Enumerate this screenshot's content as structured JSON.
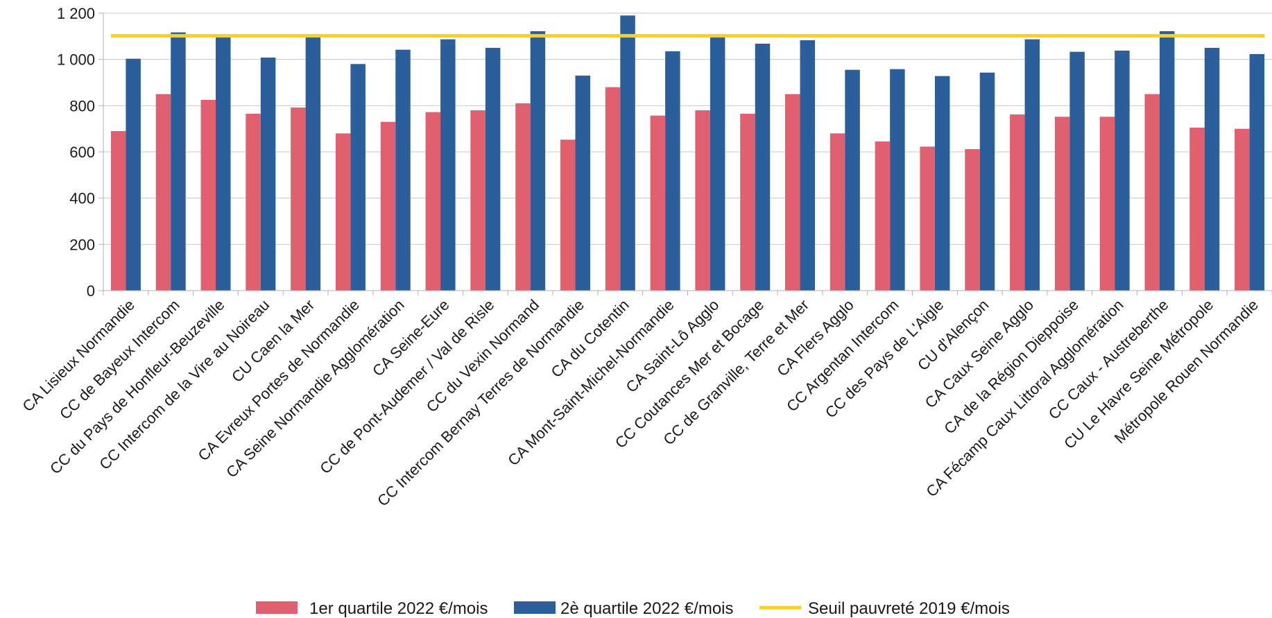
{
  "chart_data": {
    "type": "bar",
    "title": "",
    "xlabel": "",
    "ylabel": "",
    "ylim": [
      0,
      1200
    ],
    "yticks": [
      0,
      200,
      400,
      600,
      800,
      1000,
      1200
    ],
    "ytick_labels": [
      "0",
      "200",
      "400",
      "600",
      "800",
      "1 000",
      "1 200"
    ],
    "grid": "horizontal",
    "legend_position": "bottom",
    "categories": [
      "CA Lisieux Normandie",
      "CC de Bayeux Intercom",
      "CC du Pays de Honfleur-Beuzeville",
      "CC Intercom de la Vire au Noireau",
      "CU Caen la Mer",
      "CA Evreux Portes de Normandie",
      "CA Seine Normandie Agglomération",
      "CA Seine-Eure",
      "CC de Pont-Audemer / Val de Risle",
      "CC du Vexin Normand",
      "CC Intercom Bernay Terres de Normandie",
      "CA du Cotentin",
      "CA Mont-Saint-Michel-Normandie",
      "CA Saint-Lô Agglo",
      "CC Coutances Mer et Bocage",
      "CC de Granville, Terre et Mer",
      "CA Flers Agglo",
      "CC Argentan Intercom",
      "CC des Pays de L'Aigle",
      "CU d'Alençon",
      "CA Caux Seine Agglo",
      "CA de la Région Dieppoise",
      "CA Fécamp Caux Littoral Agglomération",
      "CC Caux - Austreberthe",
      "CU Le Havre Seine Métropole",
      "Métropole Rouen Normandie"
    ],
    "series": [
      {
        "name": "1er quartile 2022 €/mois",
        "kind": "bar",
        "color": "#e06070",
        "values": [
          690,
          850,
          825,
          765,
          792,
          680,
          730,
          772,
          780,
          810,
          653,
          880,
          757,
          780,
          765,
          850,
          680,
          645,
          623,
          612,
          762,
          752,
          752,
          850,
          705,
          700
        ]
      },
      {
        "name": "2è quartile 2022 €/mois",
        "kind": "bar",
        "color": "#2a5f9b",
        "values": [
          1003,
          1117,
          1098,
          1008,
          1100,
          980,
          1042,
          1087,
          1050,
          1122,
          930,
          1190,
          1035,
          1095,
          1068,
          1083,
          955,
          958,
          928,
          943,
          1087,
          1033,
          1038,
          1122,
          1050,
          1023
        ]
      },
      {
        "name": "Seuil pauvreté 2019 €/mois",
        "kind": "line",
        "color": "#fcd116",
        "value": 1102
      }
    ]
  }
}
